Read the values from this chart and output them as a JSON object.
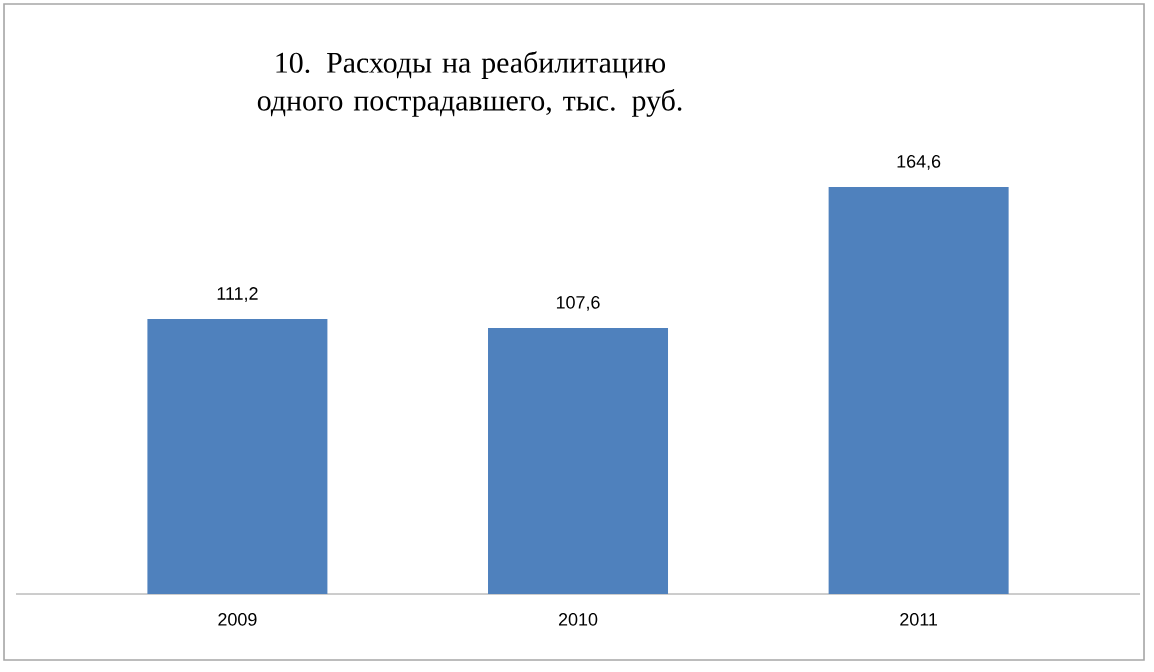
{
  "chart_data": {
    "type": "bar",
    "title": "10. Расходы на реабилитацию одного пострадавшего, тыс. руб.",
    "categories": [
      "2009",
      "2010",
      "2011"
    ],
    "values": [
      111.2,
      107.6,
      164.6
    ],
    "color": "#4f81bd",
    "value_labels": [
      "111,2",
      "107,6",
      "164,6"
    ]
  }
}
